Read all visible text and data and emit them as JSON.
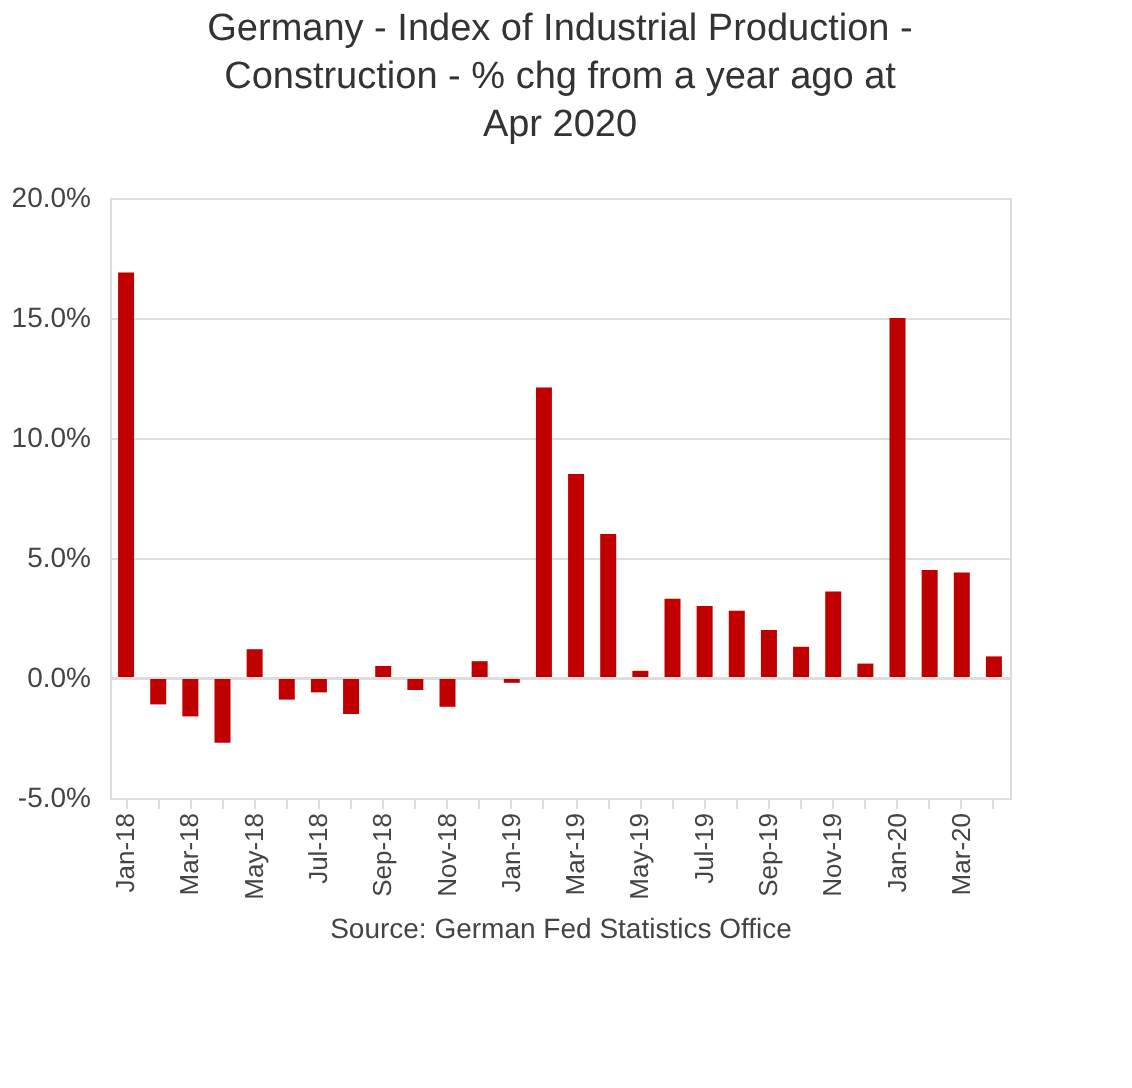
{
  "chart_data": {
    "type": "bar",
    "title": "Germany - Index of Industrial Production - Construction - % chg from a year ago at Apr 2020",
    "categories": [
      "Jan-18",
      null,
      "Mar-18",
      null,
      "May-18",
      null,
      "Jul-18",
      null,
      "Sep-18",
      null,
      "Nov-18",
      null,
      "Jan-19",
      null,
      "Mar-19",
      null,
      "May-19",
      null,
      "Jul-19",
      null,
      "Sep-19",
      null,
      "Nov-19",
      null,
      "Jan-20",
      null,
      "Mar-20",
      null
    ],
    "values": [
      16.9,
      -1.1,
      -1.6,
      -2.7,
      1.2,
      -0.9,
      -0.6,
      -1.5,
      0.5,
      -0.5,
      -1.2,
      0.7,
      -0.2,
      12.1,
      8.5,
      6.0,
      0.3,
      3.3,
      3.0,
      2.8,
      2.0,
      1.3,
      3.6,
      0.6,
      15.0,
      4.5,
      4.4,
      0.9
    ],
    "color": "#c00000",
    "ylim": [
      -5,
      20
    ],
    "yticks": [
      {
        "value": -5,
        "label": "-5.0%"
      },
      {
        "value": 0,
        "label": "0.0%"
      },
      {
        "value": 5,
        "label": "5.0%"
      },
      {
        "value": 10,
        "label": "10.0%"
      },
      {
        "value": 15,
        "label": "15.0%"
      },
      {
        "value": 20,
        "label": "20.0%"
      }
    ],
    "grid": "y",
    "annotations": [
      "Source: German Fed Statistics Office"
    ]
  }
}
